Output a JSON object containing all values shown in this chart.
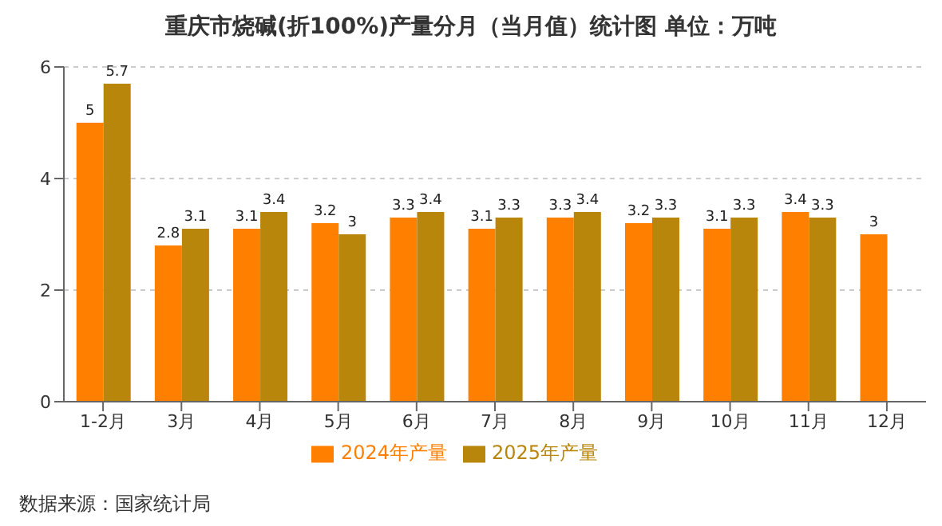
{
  "chart_data": {
    "type": "bar",
    "title": "重庆市烧碱(折100%)产量分月（当月值）统计图 单位：万吨",
    "categories": [
      "1-2月",
      "3月",
      "4月",
      "5月",
      "6月",
      "7月",
      "8月",
      "9月",
      "10月",
      "11月",
      "12月"
    ],
    "series": [
      {
        "name": "2024年产量",
        "color": "#ff8000",
        "values": [
          5,
          2.8,
          3.1,
          3.2,
          3.3,
          3.1,
          3.3,
          3.2,
          3.1,
          3.4,
          3
        ]
      },
      {
        "name": "2025年产量",
        "color": "#b8860b",
        "values": [
          5.7,
          3.1,
          3.4,
          3,
          3.4,
          3.3,
          3.4,
          3.3,
          3.3,
          3.3,
          null
        ]
      }
    ],
    "ylim": [
      0,
      6
    ],
    "yticks": [
      0,
      2,
      4,
      6
    ],
    "grid": "y",
    "legend": "bottom",
    "data_labels": true,
    "annotations": [
      "数据来源：国家统计局"
    ]
  }
}
